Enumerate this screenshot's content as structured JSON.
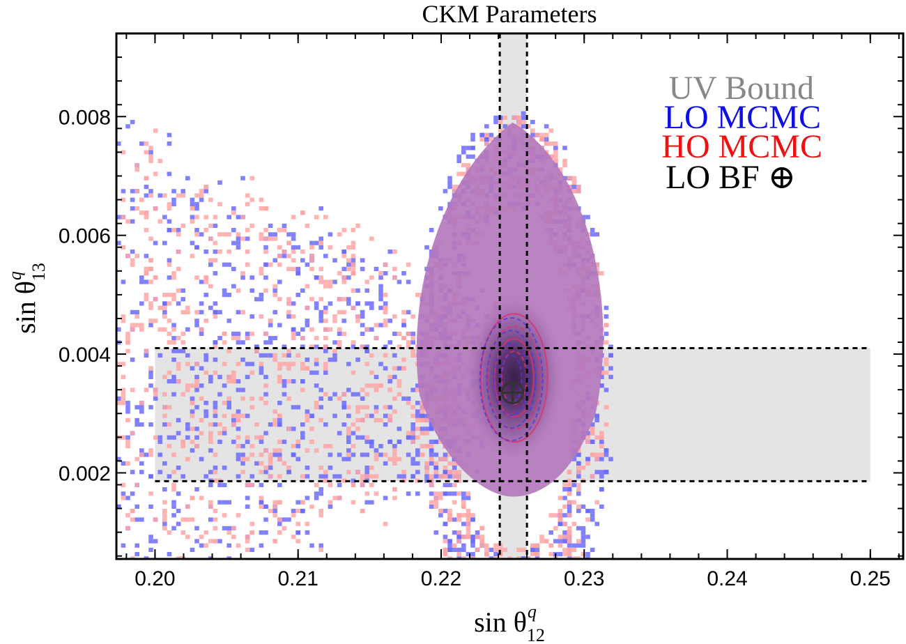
{
  "chart_data": {
    "type": "heatmap",
    "title": "CKM Parameters",
    "xlabel": {
      "base": "sin θ",
      "sup": "q",
      "sub": "12"
    },
    "ylabel": {
      "base": "sin θ",
      "sup": "q",
      "sub": "13"
    },
    "xlim": [
      0.1973,
      0.2523
    ],
    "ylim": [
      0.00055,
      0.0094
    ],
    "x_ticks": [
      {
        "value": 0.2,
        "label": "0.20"
      },
      {
        "value": 0.21,
        "label": "0.21"
      },
      {
        "value": 0.22,
        "label": "0.22"
      },
      {
        "value": 0.23,
        "label": "0.23"
      },
      {
        "value": 0.24,
        "label": "0.24"
      },
      {
        "value": 0.25,
        "label": "0.25"
      }
    ],
    "y_ticks": [
      {
        "value": 0.002,
        "label": "0.002"
      },
      {
        "value": 0.004,
        "label": "0.004"
      },
      {
        "value": 0.006,
        "label": "0.006"
      },
      {
        "value": 0.008,
        "label": "0.008"
      }
    ],
    "uv_bound_bands": {
      "horizontal": {
        "x_range": [
          0.2,
          0.25
        ],
        "y_range": [
          0.00186,
          0.0041
        ]
      },
      "vertical": {
        "x_range": [
          0.2241,
          0.226
        ],
        "y_range": [
          0.00055,
          0.0094
        ]
      }
    },
    "best_fit": {
      "x": 0.225,
      "y": 0.00335,
      "marker": "⊕"
    },
    "series": [
      {
        "name": "LO MCMC",
        "color": "#6b6bff",
        "center": [
          0.225,
          0.0036
        ],
        "spread": [
          0.0055,
          0.0012
        ],
        "seed": 7
      },
      {
        "name": "HO MCMC",
        "color": "#ffa6a6",
        "center": [
          0.225,
          0.0036
        ],
        "spread": [
          0.0052,
          0.0011
        ],
        "seed": 31
      }
    ],
    "density_color": "#b478bc",
    "contour_levels": [
      0.35,
      0.55,
      0.75,
      0.95
    ],
    "legend": {
      "placement": "top-right",
      "entries": [
        {
          "label": "UV Bound",
          "color": "#888888"
        },
        {
          "label": "LO MCMC",
          "color": "#0f10e6"
        },
        {
          "label": "HO MCMC",
          "color": "#ee1111"
        },
        {
          "label": "LO BF ⊕",
          "color": "#000000"
        }
      ]
    }
  }
}
